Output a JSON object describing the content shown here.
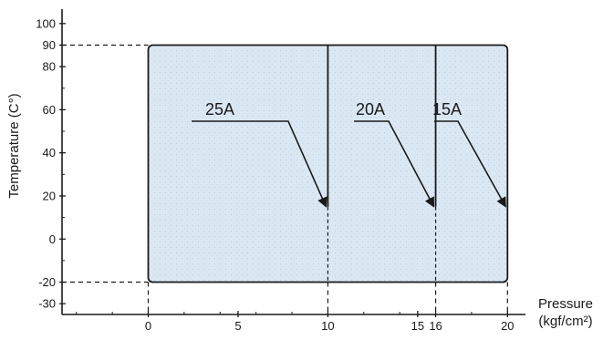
{
  "diagram": {
    "y_axis": {
      "label": "Temperature (C°)",
      "range": [
        -35,
        105
      ],
      "ticks": [
        {
          "value": 100,
          "label": "100"
        },
        {
          "value": 90,
          "label": "90"
        },
        {
          "value": 80,
          "label": "80"
        },
        {
          "value": 60,
          "label": "60"
        },
        {
          "value": 40,
          "label": "40"
        },
        {
          "value": 20,
          "label": "20"
        },
        {
          "value": 0,
          "label": "0"
        },
        {
          "value": -20,
          "label": "-20"
        },
        {
          "value": -30,
          "label": "-30"
        }
      ]
    },
    "x_axis": {
      "label_line1": "Pressure",
      "label_line2": "(kgf/cm²)",
      "range": [
        -4.8,
        21
      ],
      "ticks": [
        {
          "value": 0,
          "label": "0"
        },
        {
          "value": 5,
          "label": "5"
        },
        {
          "value": 10,
          "label": "10"
        },
        {
          "value": 15,
          "label": "15"
        },
        {
          "value": 16,
          "label": "16"
        },
        {
          "value": 20,
          "label": "20"
        }
      ]
    },
    "region": {
      "x_min": 0,
      "x_max": 20,
      "y_min": -20,
      "y_max": 90,
      "fill": "#dbe8f4",
      "dividers": [
        10,
        16
      ]
    },
    "sizes": [
      {
        "label": "25A",
        "max_pressure": 10,
        "arrow_tip_temp": 15
      },
      {
        "label": "20A",
        "max_pressure": 16,
        "arrow_tip_temp": 15
      },
      {
        "label": "15A",
        "max_pressure": 20,
        "arrow_tip_temp": 15
      }
    ]
  }
}
